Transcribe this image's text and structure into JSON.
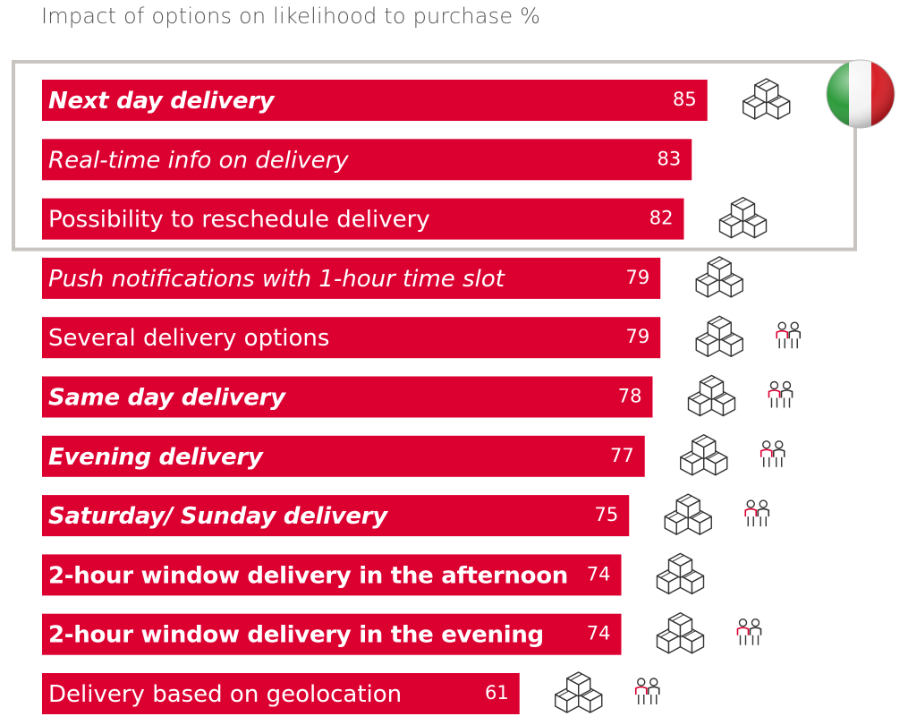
{
  "title": "Impact of options on likelihood to purchase  %",
  "colors": {
    "bar": "#dc0031",
    "highlight_frame": "#c8c4bf",
    "icon_stroke": "#333333",
    "person_accent": "#dc0031",
    "flag_green": "#2e9b3c",
    "flag_white": "#f4f4f4",
    "flag_red": "#d61f26"
  },
  "chart_data": {
    "type": "bar",
    "orientation": "horizontal",
    "title": "Impact of options on likelihood to purchase  %",
    "xlim": [
      0,
      100
    ],
    "categories": [
      "Next day delivery",
      "Real-time info on delivery",
      "Possibility to reschedule delivery",
      "Push notifications with 1-hour time slot",
      "Several delivery options",
      "Same day delivery",
      "Evening delivery",
      "Saturday/ Sunday delivery",
      "2-hour window delivery in the afternoon",
      "2-hour window delivery in the evening",
      "Delivery based on geolocation"
    ],
    "values": [
      85,
      83,
      82,
      79,
      79,
      78,
      77,
      75,
      74,
      74,
      61
    ],
    "label_styles": [
      "bold-italic",
      "italic",
      "normal",
      "italic",
      "normal",
      "bold-italic",
      "bold-italic",
      "bold-italic",
      "bold",
      "bold",
      "normal"
    ],
    "box_icon": [
      true,
      false,
      true,
      true,
      true,
      true,
      true,
      true,
      true,
      true,
      true
    ],
    "people_icon": [
      false,
      false,
      false,
      false,
      true,
      true,
      true,
      true,
      false,
      true,
      true
    ],
    "highlighted_rows": [
      0,
      1,
      2
    ],
    "grid": false,
    "legend": "none"
  },
  "flag": {
    "icon": "italy-flag-icon"
  }
}
